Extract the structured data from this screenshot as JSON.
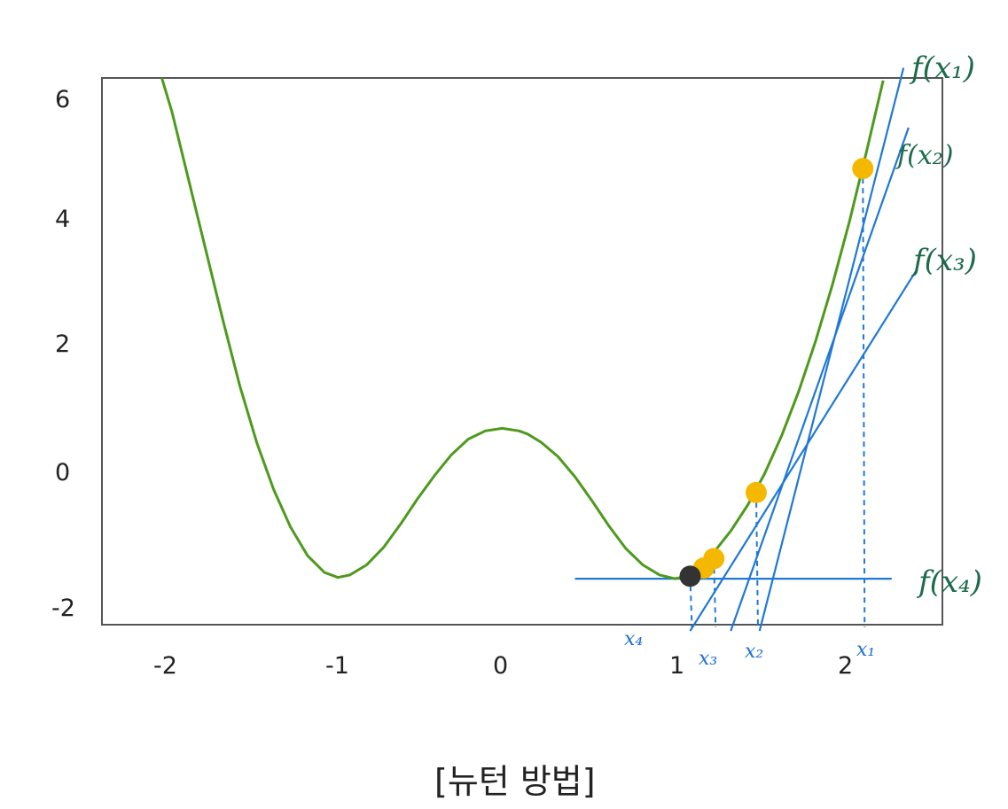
{
  "chart_data": {
    "type": "line",
    "title": "",
    "caption": "[뉴턴 방법]",
    "xlabel": "",
    "ylabel": "",
    "xlim": [
      -2.4,
      2.6
    ],
    "ylim": [
      -2.45,
      6.3
    ],
    "x_ticks": [
      "-2",
      "-1",
      "0",
      "1",
      "2"
    ],
    "y_ticks": [
      "6",
      "4",
      "2",
      "0",
      "-2"
    ],
    "grid": false,
    "curve": {
      "name": "",
      "color": "#4d9a1c",
      "x": [
        -2.06,
        -2.0,
        -1.9,
        -1.8,
        -1.7,
        -1.6,
        -1.5,
        -1.4,
        -1.3,
        -1.2,
        -1.1,
        -1.02,
        -0.95,
        -0.85,
        -0.75,
        -0.65,
        -0.55,
        -0.45,
        -0.35,
        -0.25,
        -0.15,
        -0.05,
        0.05,
        0.1,
        0.18,
        0.28,
        0.38,
        0.48,
        0.58,
        0.68,
        0.78,
        0.88,
        0.97,
        1.04,
        1.12,
        1.2,
        1.3,
        1.4,
        1.5,
        1.6,
        1.7,
        1.8,
        1.9,
        2.0,
        2.1,
        2.2
      ],
      "y": [
        6.3,
        5.7,
        4.6,
        3.5,
        2.4,
        1.35,
        0.45,
        -0.3,
        -0.9,
        -1.35,
        -1.62,
        -1.7,
        -1.66,
        -1.5,
        -1.22,
        -0.85,
        -0.45,
        -0.08,
        0.25,
        0.5,
        0.63,
        0.67,
        0.63,
        0.58,
        0.45,
        0.22,
        -0.1,
        -0.48,
        -0.88,
        -1.24,
        -1.5,
        -1.66,
        -1.72,
        -1.68,
        -1.52,
        -1.3,
        -0.96,
        -0.55,
        -0.05,
        0.55,
        1.25,
        2.05,
        2.95,
        3.95,
        5.05,
        6.2
      ]
    },
    "iterates": [
      {
        "label": "x1",
        "x": 2.08,
        "y": 4.8,
        "color": "#f5b800"
      },
      {
        "label": "x2",
        "x": 1.45,
        "y": -0.35,
        "color": "#f5b800"
      },
      {
        "label": "x3",
        "x": 1.2,
        "y": -1.4,
        "color": "#f5b800"
      },
      {
        "label": "",
        "x": 1.14,
        "y": -1.55,
        "color": "#f5b800"
      },
      {
        "label": "x4",
        "x": 1.06,
        "y": -1.68,
        "color": "#333333"
      }
    ],
    "tangent_lines": [
      {
        "label": "f(x1)",
        "x1": 1.47,
        "y1": -2.55,
        "x2": 2.32,
        "y2": 6.4
      },
      {
        "label": "f(x2)",
        "x1": 1.3,
        "y1": -2.55,
        "x2": 2.35,
        "y2": 5.45
      },
      {
        "label": "f(x3)",
        "x1": 1.06,
        "y1": -2.55,
        "x2": 2.4,
        "y2": 3.2
      },
      {
        "label": "f(x4)",
        "x1": 0.38,
        "y1": -1.72,
        "x2": 2.25,
        "y2": -1.72
      }
    ],
    "annotations": {
      "tangent_labels": [
        "f(x₁)",
        "f(x₂)",
        "f(x₃)",
        "f(x₄)"
      ],
      "x_labels": [
        "x₄",
        "x₃",
        "x₂",
        "x₁"
      ]
    },
    "colors": {
      "tangent": "#1f78d6",
      "handwriting_green": "#1d6b4a",
      "handwriting_blue": "#1f6fd0",
      "axes": "#555555"
    }
  }
}
